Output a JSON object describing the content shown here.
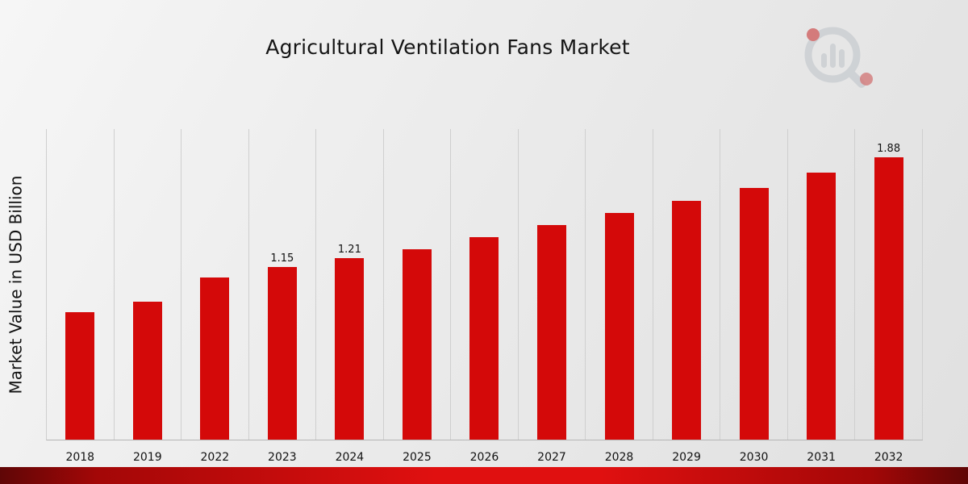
{
  "title": "Agricultural Ventilation Fans Market",
  "ylabel": "Market Value in USD Billion",
  "chart_data": {
    "type": "bar",
    "title": "Agricultural Ventilation Fans Market",
    "xlabel": "",
    "ylabel": "Market Value in USD Billion",
    "categories": [
      "2018",
      "2019",
      "2022",
      "2023",
      "2024",
      "2025",
      "2026",
      "2027",
      "2028",
      "2029",
      "2030",
      "2031",
      "2032"
    ],
    "values": [
      0.85,
      0.92,
      1.08,
      1.15,
      1.21,
      1.27,
      1.35,
      1.43,
      1.51,
      1.59,
      1.68,
      1.78,
      1.88
    ],
    "annotations": [
      {
        "category": "2023",
        "text": "1.15"
      },
      {
        "category": "2024",
        "text": "1.21"
      },
      {
        "category": "2032",
        "text": "1.88"
      }
    ],
    "ylim": [
      0,
      2.07
    ],
    "bar_color": "#d40909",
    "grid": "vertical-only",
    "legend": "none"
  },
  "branding": {
    "logo_icon": "bar-chart-magnifier-logo"
  },
  "colors": {
    "accent_red": "#d40909",
    "footer_band_dark": "#5f0606",
    "footer_band_bright": "#e01010",
    "background": "#ececec",
    "gridline": "#cfcfcf"
  }
}
